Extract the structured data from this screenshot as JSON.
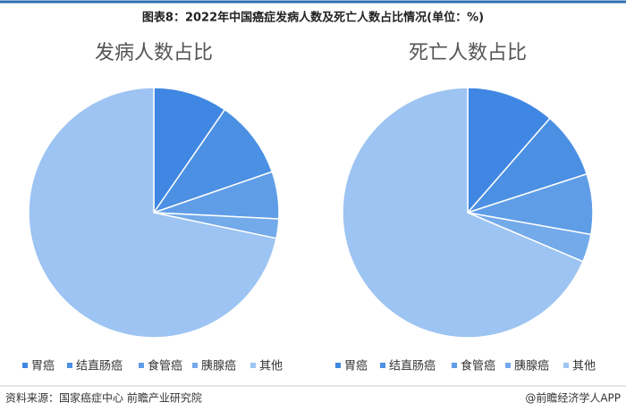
{
  "header": {
    "title": "图表8：2022年中国癌症发病人数及死亡人数占比情况(单位：%)"
  },
  "chart_data": [
    {
      "type": "pie",
      "title": "发病人数占比",
      "categories": [
        "胃癌",
        "结直肠癌",
        "食管癌",
        "胰腺癌",
        "其他"
      ],
      "values": [
        9.6,
        10.1,
        6.1,
        2.5,
        71.7
      ],
      "colors": [
        "#3f87e2",
        "#4b90e3",
        "#5f9de7",
        "#73aaea",
        "#9dc4f2"
      ]
    },
    {
      "type": "pie",
      "title": "死亡人数占比",
      "categories": [
        "胃癌",
        "结直肠癌",
        "食管癌",
        "胰腺癌",
        "其他"
      ],
      "values": [
        11.4,
        8.6,
        7.8,
        3.6,
        68.6
      ],
      "colors": [
        "#3f87e2",
        "#4b90e3",
        "#5f9de7",
        "#73aaea",
        "#9dc4f2"
      ]
    }
  ],
  "footer": {
    "source": "资料来源：国家癌症中心 前瞻产业研究院",
    "brand": "@前瞻经济学人APP"
  }
}
